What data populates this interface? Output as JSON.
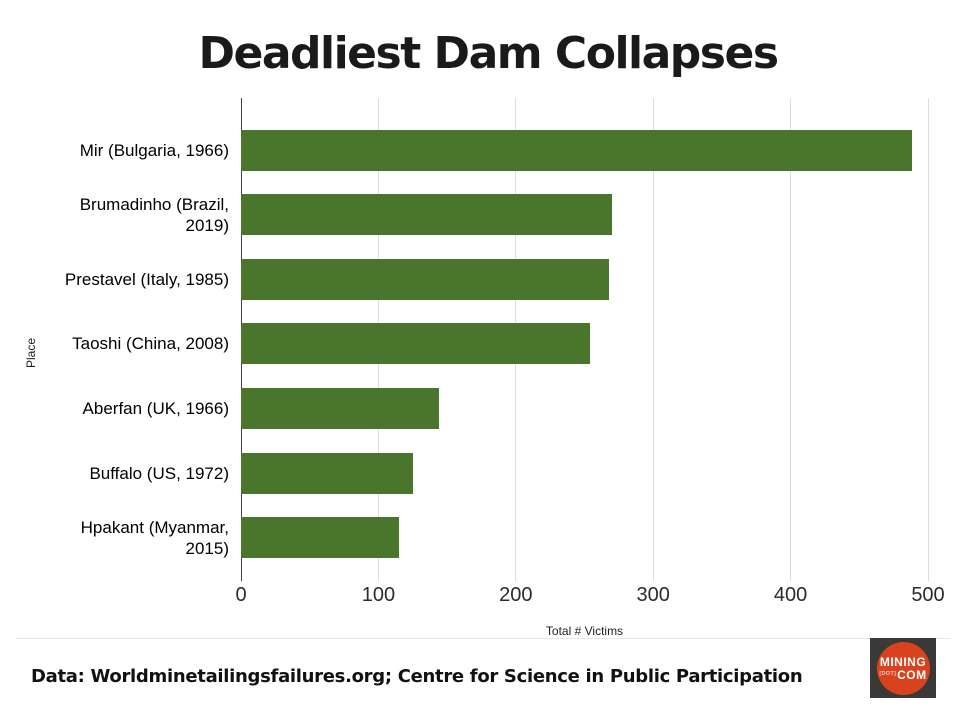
{
  "chart_data": {
    "type": "bar",
    "orientation": "horizontal",
    "title": "Deadliest Dam Collapses",
    "categories": [
      "Mir (Bulgaria, 1966)",
      "Brumadinho (Brazil,\n2019)",
      "Prestavel (Italy, 1985)",
      "Taoshi (China, 2008)",
      "Aberfan (UK, 1966)",
      "Buffalo (US, 1972)",
      "Hpakant (Myanmar,\n2015)"
    ],
    "values": [
      488,
      270,
      268,
      254,
      144,
      125,
      115
    ],
    "xlabel": "Total # Victims",
    "ylabel": "Place",
    "xlim": [
      0,
      500
    ],
    "xticks": [
      0,
      100,
      200,
      300,
      400,
      500
    ],
    "grid": true,
    "legend": "none",
    "bar_color": "#4a752c",
    "gridline_color": "#dcdcdc",
    "axis_color": "#424242"
  },
  "caption": "Data: Worldminetailingsfailures.org; Centre for Science in Public Participation",
  "logo": {
    "line1": "MINING",
    "dot": "[DOT]",
    "com": "COM",
    "square_color": "#3a3938",
    "circle_color": "#d8421e"
  }
}
